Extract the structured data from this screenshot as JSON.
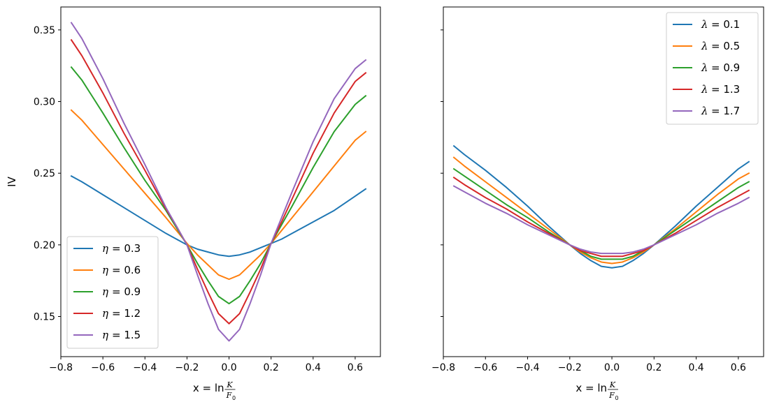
{
  "chart_data": [
    {
      "type": "line",
      "id": "left",
      "xlabel_prefix": "x = ln",
      "xlabel_num": "K",
      "xlabel_den": "F",
      "xlabel_den_sub": "0",
      "ylabel": "IV",
      "xlim": [
        -0.8,
        0.72
      ],
      "ylim": [
        0.122,
        0.366
      ],
      "xticks": [
        -0.8,
        -0.6,
        -0.4,
        -0.2,
        0.0,
        0.2,
        0.4,
        0.6
      ],
      "xtick_labels": [
        "−0.8",
        "−0.6",
        "−0.4",
        "−0.2",
        "0.0",
        "0.2",
        "0.4",
        "0.6"
      ],
      "yticks": [
        0.15,
        0.2,
        0.25,
        0.3,
        0.35
      ],
      "ytick_labels": [
        "0.15",
        "0.20",
        "0.25",
        "0.30",
        "0.35"
      ],
      "legend_position": "lower-left",
      "legend_symbol": "η",
      "x": [
        -0.75,
        -0.7,
        -0.6,
        -0.5,
        -0.4,
        -0.3,
        -0.25,
        -0.2,
        -0.15,
        -0.1,
        -0.05,
        0.0,
        0.05,
        0.1,
        0.15,
        0.2,
        0.25,
        0.3,
        0.4,
        0.5,
        0.6,
        0.65
      ],
      "series": [
        {
          "name": "0.3",
          "color": "#1f77b4",
          "values": [
            0.248,
            0.244,
            0.235,
            0.226,
            0.217,
            0.208,
            0.204,
            0.2,
            0.197,
            0.195,
            0.193,
            0.192,
            0.193,
            0.195,
            0.198,
            0.201,
            0.204,
            0.208,
            0.216,
            0.224,
            0.234,
            0.239
          ]
        },
        {
          "name": "0.6",
          "color": "#ff7f0e",
          "values": [
            0.294,
            0.287,
            0.27,
            0.253,
            0.236,
            0.219,
            0.21,
            0.201,
            0.193,
            0.186,
            0.179,
            0.176,
            0.179,
            0.186,
            0.193,
            0.201,
            0.21,
            0.219,
            0.237,
            0.255,
            0.273,
            0.279
          ]
        },
        {
          "name": "0.9",
          "color": "#2ca02c",
          "values": [
            0.324,
            0.315,
            0.292,
            0.268,
            0.245,
            0.224,
            0.212,
            0.2,
            0.187,
            0.175,
            0.164,
            0.159,
            0.164,
            0.175,
            0.187,
            0.201,
            0.214,
            0.227,
            0.254,
            0.279,
            0.298,
            0.304
          ]
        },
        {
          "name": "1.2",
          "color": "#d62728",
          "values": [
            0.343,
            0.332,
            0.306,
            0.278,
            0.252,
            0.225,
            0.213,
            0.2,
            0.183,
            0.167,
            0.152,
            0.145,
            0.152,
            0.167,
            0.183,
            0.201,
            0.216,
            0.232,
            0.264,
            0.292,
            0.314,
            0.32
          ]
        },
        {
          "name": "1.5",
          "color": "#9467bd",
          "values": [
            0.355,
            0.344,
            0.316,
            0.285,
            0.256,
            0.226,
            0.213,
            0.2,
            0.179,
            0.159,
            0.141,
            0.133,
            0.141,
            0.159,
            0.179,
            0.201,
            0.219,
            0.237,
            0.272,
            0.302,
            0.323,
            0.329
          ]
        }
      ]
    },
    {
      "type": "line",
      "id": "right",
      "xlabel_prefix": "x = ln",
      "xlabel_num": "K",
      "xlabel_den": "F",
      "xlabel_den_sub": "0",
      "ylabel": "",
      "xlim": [
        -0.8,
        0.72
      ],
      "ylim": [
        0.122,
        0.366
      ],
      "xticks": [
        -0.8,
        -0.6,
        -0.4,
        -0.2,
        0.0,
        0.2,
        0.4,
        0.6
      ],
      "xtick_labels": [
        "−0.8",
        "−0.6",
        "−0.4",
        "−0.2",
        "0.0",
        "0.2",
        "0.4",
        "0.6"
      ],
      "yticks": [
        0.15,
        0.2,
        0.25,
        0.3,
        0.35
      ],
      "ytick_labels": [],
      "legend_position": "upper-right",
      "legend_symbol": "λ",
      "x": [
        -0.75,
        -0.7,
        -0.6,
        -0.5,
        -0.4,
        -0.3,
        -0.2,
        -0.15,
        -0.1,
        -0.05,
        0.0,
        0.05,
        0.1,
        0.15,
        0.2,
        0.3,
        0.4,
        0.5,
        0.6,
        0.65
      ],
      "series": [
        {
          "name": "0.1",
          "color": "#1f77b4",
          "values": [
            0.269,
            0.263,
            0.252,
            0.24,
            0.227,
            0.213,
            0.2,
            0.194,
            0.189,
            0.185,
            0.184,
            0.185,
            0.189,
            0.194,
            0.2,
            0.213,
            0.227,
            0.24,
            0.253,
            0.258
          ]
        },
        {
          "name": "0.5",
          "color": "#ff7f0e",
          "values": [
            0.261,
            0.255,
            0.244,
            0.233,
            0.222,
            0.211,
            0.2,
            0.195,
            0.191,
            0.188,
            0.187,
            0.188,
            0.191,
            0.195,
            0.2,
            0.211,
            0.223,
            0.235,
            0.246,
            0.25
          ]
        },
        {
          "name": "0.9",
          "color": "#2ca02c",
          "values": [
            0.253,
            0.248,
            0.238,
            0.228,
            0.219,
            0.209,
            0.2,
            0.196,
            0.192,
            0.19,
            0.19,
            0.19,
            0.192,
            0.196,
            0.2,
            0.21,
            0.22,
            0.23,
            0.24,
            0.244
          ]
        },
        {
          "name": "1.3",
          "color": "#d62728",
          "values": [
            0.247,
            0.242,
            0.233,
            0.225,
            0.216,
            0.208,
            0.2,
            0.196,
            0.194,
            0.192,
            0.192,
            0.192,
            0.194,
            0.196,
            0.2,
            0.208,
            0.217,
            0.226,
            0.234,
            0.238
          ]
        },
        {
          "name": "1.7",
          "color": "#9467bd",
          "values": [
            0.241,
            0.237,
            0.229,
            0.222,
            0.214,
            0.207,
            0.2,
            0.197,
            0.195,
            0.194,
            0.194,
            0.194,
            0.195,
            0.197,
            0.2,
            0.207,
            0.214,
            0.222,
            0.229,
            0.233
          ]
        }
      ]
    }
  ]
}
